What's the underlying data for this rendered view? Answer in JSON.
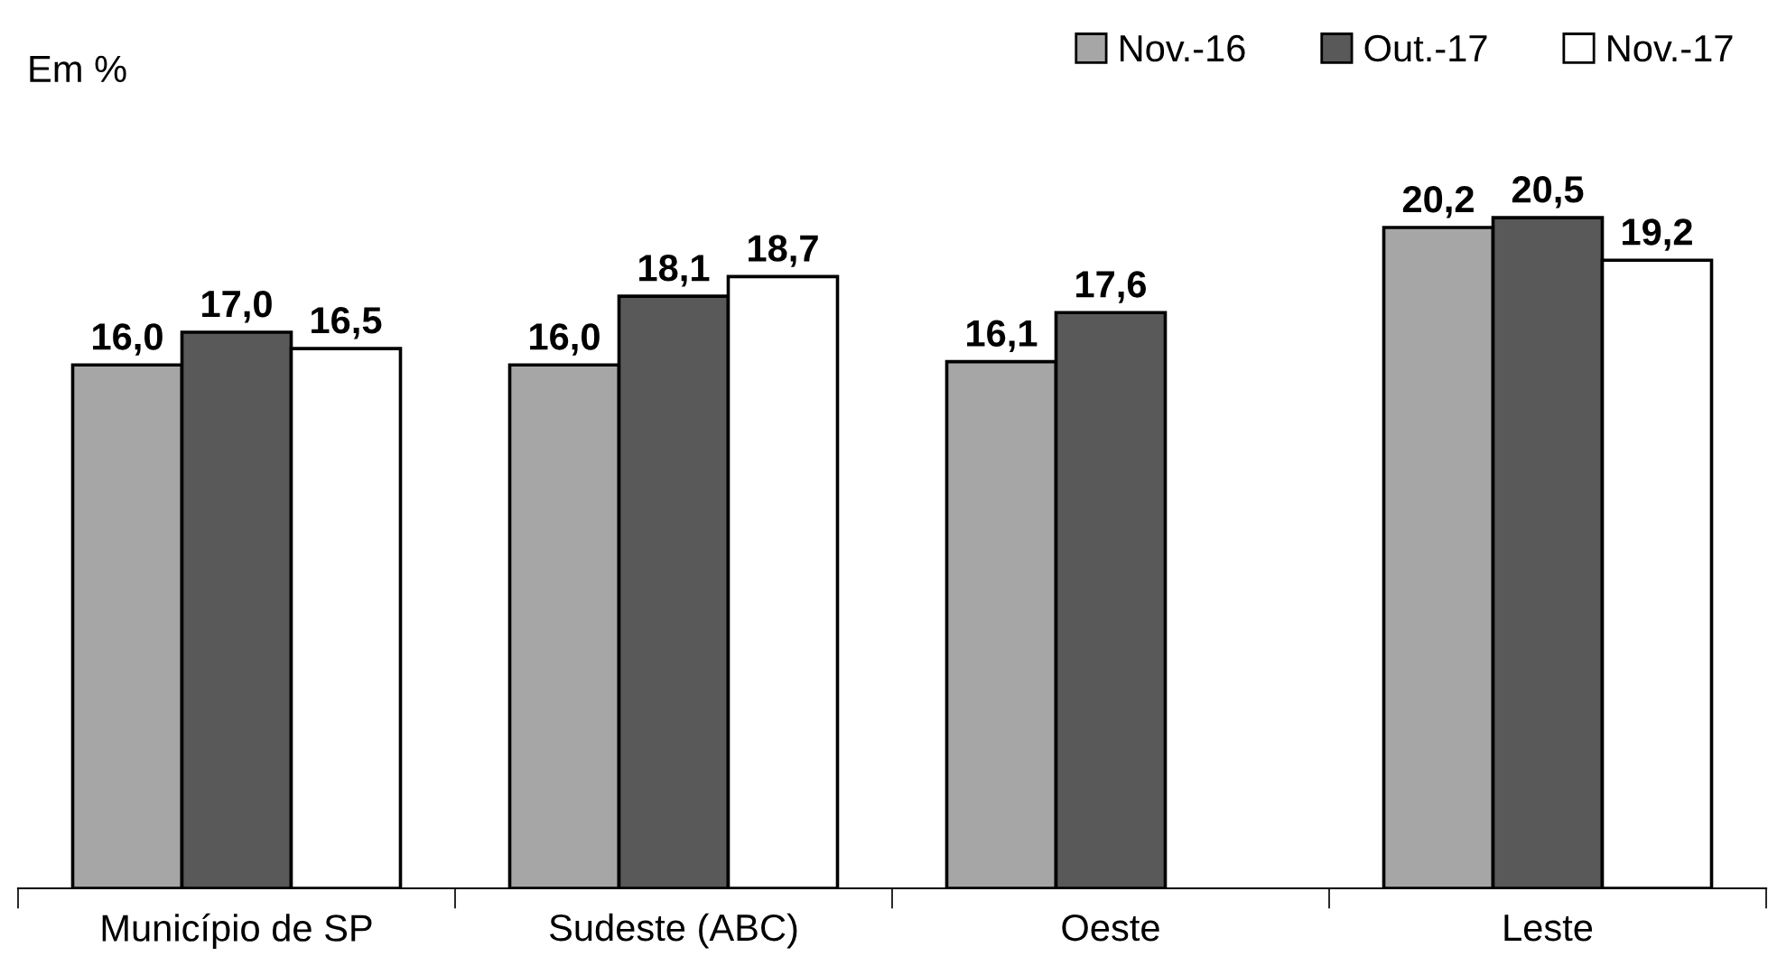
{
  "chart_data": {
    "type": "bar",
    "ylabel": "Em %",
    "categories": [
      "Município de SP",
      "Sudeste (ABC)",
      "Oeste",
      "Leste"
    ],
    "series": [
      {
        "name": "Nov.-16",
        "color": "#a6a6a6",
        "values": [
          16.0,
          16.0,
          16.1,
          20.2
        ],
        "value_labels": [
          "16,0",
          "16,0",
          "16,1",
          "20,2"
        ]
      },
      {
        "name": "Out.-17",
        "color": "#595959",
        "values": [
          17.0,
          18.1,
          17.6,
          20.5
        ],
        "value_labels": [
          "17,0",
          "18,1",
          "17,6",
          "20,5"
        ]
      },
      {
        "name": "Nov.-17",
        "color": "#ffffff",
        "values": [
          16.5,
          18.7,
          null,
          19.2
        ],
        "value_labels": [
          "16,5",
          "18,7",
          null,
          "19,2"
        ]
      }
    ],
    "legend": "top right",
    "tick_labels": "x"
  }
}
